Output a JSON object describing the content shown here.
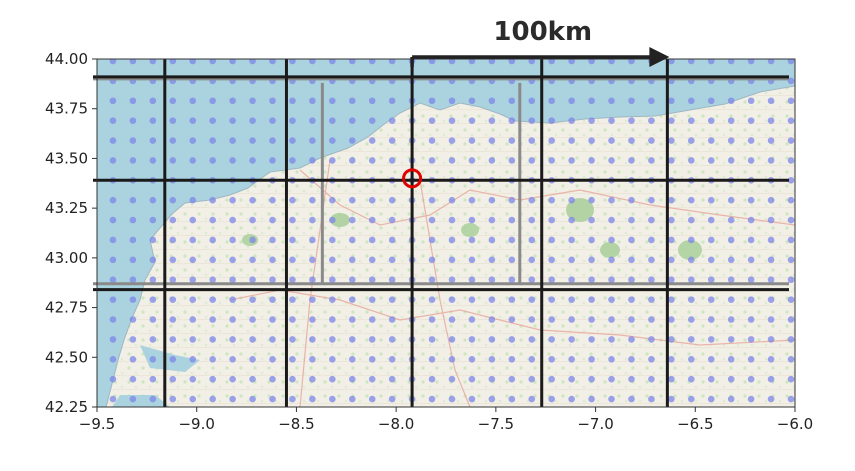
{
  "chart_data": {
    "type": "scatter",
    "title": "",
    "scale_bar": {
      "label": "100km",
      "from_lon": -7.92,
      "to_lon": -6.63,
      "lat": 44.0
    },
    "xlim": [
      -9.5,
      -6.0
    ],
    "ylim": [
      42.25,
      44.0
    ],
    "x_ticks": [
      -9.5,
      -9.0,
      -8.5,
      -8.0,
      -7.5,
      -7.0,
      -6.5,
      -6.0
    ],
    "x_tick_labels": [
      "−9.5",
      "−9.0",
      "−8.5",
      "−8.0",
      "−7.5",
      "−7.0",
      "−6.5",
      "−6.0"
    ],
    "y_ticks": [
      42.25,
      42.5,
      42.75,
      43.0,
      43.25,
      43.5,
      43.75,
      44.0
    ],
    "y_tick_labels": [
      "42.25",
      "42.50",
      "42.75",
      "43.00",
      "43.25",
      "43.50",
      "43.75",
      "44.00"
    ],
    "grid": {
      "black_vertical_lon": [
        -9.16,
        -8.55,
        -7.92,
        -7.27,
        -6.64
      ],
      "black_horizontal_lat": [
        43.91,
        43.39,
        42.84
      ],
      "gray_vertical": [
        {
          "lon": -8.37,
          "lat_range": [
            42.87,
            43.88
          ]
        },
        {
          "lon": -7.38,
          "lat_range": [
            42.87,
            43.88
          ]
        }
      ],
      "gray_horizontal_lat": [
        43.9,
        42.87
      ]
    },
    "marker": {
      "lon": -7.92,
      "lat": 43.4,
      "style": "red-ring"
    },
    "dots": {
      "lon_start": -9.42,
      "lon_step": 0.1,
      "lat_start": 42.29,
      "lat_step": 0.1,
      "count_x": 35,
      "count_y": 18
    },
    "colors": {
      "sea": "#aad3df",
      "land": "#f1efe6",
      "forest": "#add19e",
      "dots": "#7c85e8",
      "grid_black": "#1a1a1a",
      "grid_gray": "#8a8a8a",
      "marker": "#e00000",
      "arrow": "#222222"
    }
  }
}
